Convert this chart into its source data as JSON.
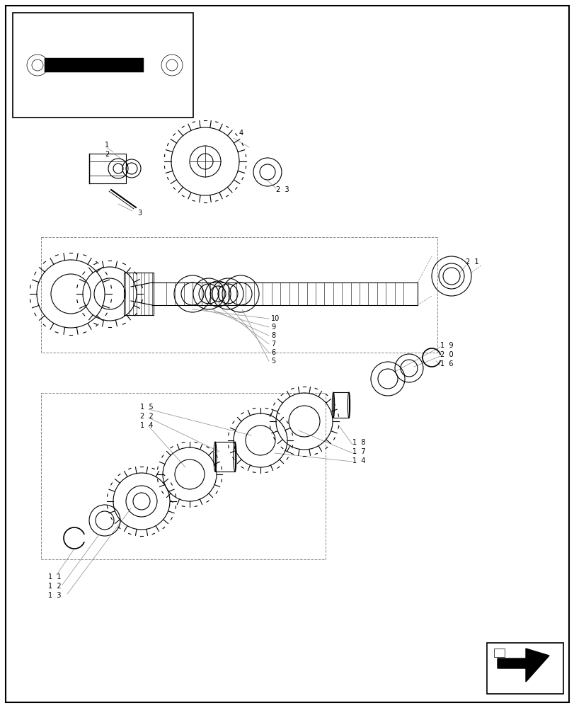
{
  "bg": "#ffffff",
  "lc": "#000000",
  "glc": "#888888",
  "fig_w": 8.12,
  "fig_h": 10.0,
  "dpi": 100
}
